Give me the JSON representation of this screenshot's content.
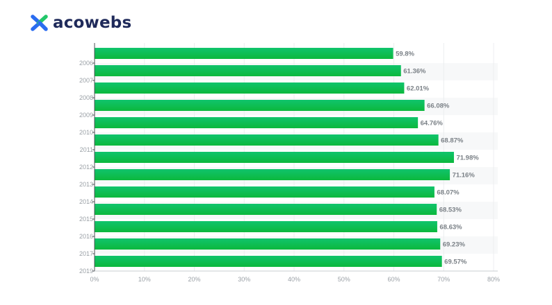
{
  "brand": {
    "name": "acowebs",
    "logo_colors": {
      "primary": "#2a6cf0",
      "secondary": "#22c76a"
    }
  },
  "chart_data": {
    "type": "bar",
    "orientation": "horizontal",
    "categories": [
      "2006",
      "2007",
      "2008",
      "2009",
      "2010",
      "2011",
      "2012",
      "2013",
      "2014",
      "2015",
      "2016",
      "2017",
      "2019"
    ],
    "values": [
      59.8,
      61.36,
      62.01,
      66.08,
      64.76,
      68.87,
      71.98,
      71.16,
      68.07,
      68.53,
      68.63,
      69.23,
      69.57
    ],
    "value_labels": [
      "59.8%",
      "61.36%",
      "62.01%",
      "66.08%",
      "64.76%",
      "68.87%",
      "71.98%",
      "71.16%",
      "68.07%",
      "68.53%",
      "68.63%",
      "69.23%",
      "69.57%"
    ],
    "x_ticks": [
      0,
      10,
      20,
      30,
      40,
      50,
      60,
      70,
      80
    ],
    "x_tick_labels": [
      "0%",
      "10%",
      "20%",
      "30%",
      "40%",
      "50%",
      "60%",
      "70%",
      "80%"
    ],
    "xlim": [
      0,
      80
    ],
    "title": "",
    "xlabel": "",
    "ylabel": "",
    "grid": true,
    "legend": "none",
    "bar_color_top": "#10c46c",
    "bar_color_bottom": "#0cb83c"
  }
}
